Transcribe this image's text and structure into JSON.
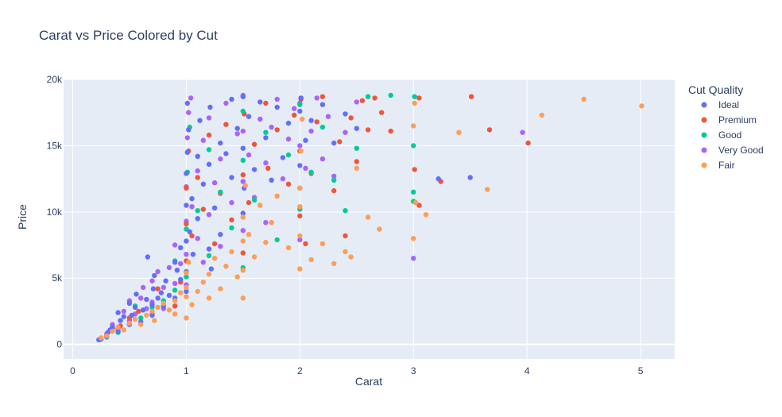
{
  "chart_data": {
    "type": "scatter",
    "title": "Carat vs Price Colored by Cut",
    "xlabel": "Carat",
    "ylabel": "Price",
    "xlim": [
      -0.08,
      5.3
    ],
    "ylim": [
      -1100,
      20000
    ],
    "x_ticks": [
      0,
      1,
      2,
      3,
      4,
      5
    ],
    "x_tick_labels": [
      "0",
      "1",
      "2",
      "3",
      "4",
      "5"
    ],
    "y_ticks": [
      0,
      5000,
      10000,
      15000,
      20000
    ],
    "y_tick_labels": [
      "0",
      "5k",
      "10k",
      "15k",
      "20k"
    ],
    "grid": true,
    "legend_title": "Cut Quality",
    "legend_position": "top-right",
    "series": [
      {
        "name": "Ideal",
        "color": "#636efa",
        "points": [
          [
            0.23,
            350
          ],
          [
            0.25,
            420
          ],
          [
            0.3,
            600
          ],
          [
            0.31,
            900
          ],
          [
            0.33,
            1100
          ],
          [
            0.35,
            1300
          ],
          [
            0.4,
            1000
          ],
          [
            0.4,
            2400
          ],
          [
            0.42,
            1800
          ],
          [
            0.45,
            2100
          ],
          [
            0.5,
            1500
          ],
          [
            0.5,
            3100
          ],
          [
            0.52,
            2200
          ],
          [
            0.55,
            2800
          ],
          [
            0.56,
            3800
          ],
          [
            0.6,
            1700
          ],
          [
            0.62,
            2600
          ],
          [
            0.65,
            3400
          ],
          [
            0.66,
            6600
          ],
          [
            0.7,
            2200
          ],
          [
            0.7,
            3000
          ],
          [
            0.71,
            4200
          ],
          [
            0.72,
            5200
          ],
          [
            0.75,
            3500
          ],
          [
            0.78,
            3900
          ],
          [
            0.8,
            2900
          ],
          [
            0.82,
            4800
          ],
          [
            0.85,
            3700
          ],
          [
            0.9,
            3500
          ],
          [
            0.9,
            6200
          ],
          [
            0.92,
            5600
          ],
          [
            0.95,
            4900
          ],
          [
            0.95,
            7300
          ],
          [
            1.0,
            4000
          ],
          [
            1.0,
            5500
          ],
          [
            1.0,
            7800
          ],
          [
            1.0,
            10500
          ],
          [
            1.0,
            12900
          ],
          [
            1.01,
            14500
          ],
          [
            1.02,
            16200
          ],
          [
            1.01,
            18200
          ],
          [
            1.03,
            8500
          ],
          [
            1.05,
            11000
          ],
          [
            1.06,
            6800
          ],
          [
            1.1,
            9500
          ],
          [
            1.1,
            14200
          ],
          [
            1.12,
            16900
          ],
          [
            1.15,
            12100
          ],
          [
            1.2,
            7200
          ],
          [
            1.2,
            13600
          ],
          [
            1.21,
            17900
          ],
          [
            1.22,
            5700
          ],
          [
            1.25,
            10300
          ],
          [
            1.3,
            15200
          ],
          [
            1.3,
            8300
          ],
          [
            1.35,
            14400
          ],
          [
            1.4,
            12600
          ],
          [
            1.4,
            18500
          ],
          [
            1.45,
            16300
          ],
          [
            1.5,
            9900
          ],
          [
            1.5,
            14800
          ],
          [
            1.5,
            18700
          ],
          [
            1.51,
            11800
          ],
          [
            1.55,
            17200
          ],
          [
            1.6,
            13200
          ],
          [
            1.65,
            18300
          ],
          [
            1.7,
            15600
          ],
          [
            1.75,
            12400
          ],
          [
            1.8,
            17900
          ],
          [
            1.85,
            14100
          ],
          [
            1.9,
            16700
          ],
          [
            2.0,
            13500
          ],
          [
            2.0,
            17600
          ],
          [
            2.01,
            18600
          ],
          [
            2.05,
            15400
          ],
          [
            2.1,
            16900
          ],
          [
            2.2,
            18100
          ],
          [
            2.3,
            15200
          ],
          [
            2.4,
            17400
          ],
          [
            2.5,
            16300
          ],
          [
            3.22,
            12500
          ],
          [
            3.5,
            12600
          ]
        ]
      },
      {
        "name": "Premium",
        "color": "#ef553b",
        "points": [
          [
            0.24,
            380
          ],
          [
            0.3,
            700
          ],
          [
            0.35,
            1200
          ],
          [
            0.42,
            1400
          ],
          [
            0.5,
            2000
          ],
          [
            0.58,
            2500
          ],
          [
            0.7,
            2300
          ],
          [
            0.75,
            4200
          ],
          [
            0.9,
            2900
          ],
          [
            0.95,
            4700
          ],
          [
            1.0,
            6300
          ],
          [
            1.0,
            9100
          ],
          [
            1.0,
            11800
          ],
          [
            1.02,
            14600
          ],
          [
            1.05,
            8200
          ],
          [
            1.1,
            12600
          ],
          [
            1.15,
            10200
          ],
          [
            1.2,
            15800
          ],
          [
            1.25,
            7600
          ],
          [
            1.3,
            11400
          ],
          [
            1.35,
            16600
          ],
          [
            1.4,
            9400
          ],
          [
            1.5,
            6900
          ],
          [
            1.5,
            12800
          ],
          [
            1.51,
            17400
          ],
          [
            1.55,
            10700
          ],
          [
            1.6,
            15100
          ],
          [
            1.7,
            18200
          ],
          [
            1.72,
            13300
          ],
          [
            1.8,
            16200
          ],
          [
            1.9,
            12100
          ],
          [
            1.95,
            17300
          ],
          [
            2.0,
            9700
          ],
          [
            2.0,
            14600
          ],
          [
            2.01,
            18500
          ],
          [
            2.05,
            7600
          ],
          [
            2.1,
            12900
          ],
          [
            2.15,
            16800
          ],
          [
            2.2,
            18700
          ],
          [
            2.3,
            11600
          ],
          [
            2.35,
            15300
          ],
          [
            2.4,
            8200
          ],
          [
            2.45,
            17100
          ],
          [
            2.5,
            13800
          ],
          [
            2.55,
            18400
          ],
          [
            2.6,
            16200
          ],
          [
            2.66,
            18600
          ],
          [
            2.72,
            17500
          ],
          [
            2.8,
            16100
          ],
          [
            3.01,
            13200
          ],
          [
            3.05,
            10500
          ],
          [
            3.05,
            18600
          ],
          [
            3.24,
            12300
          ],
          [
            3.51,
            18700
          ],
          [
            3.67,
            16200
          ],
          [
            4.01,
            15200
          ]
        ]
      },
      {
        "name": "Good",
        "color": "#00cc96",
        "points": [
          [
            0.3,
            550
          ],
          [
            0.4,
            900
          ],
          [
            0.5,
            1600
          ],
          [
            0.55,
            2900
          ],
          [
            0.6,
            2000
          ],
          [
            0.7,
            2800
          ],
          [
            0.8,
            3300
          ],
          [
            0.9,
            4100
          ],
          [
            0.9,
            6300
          ],
          [
            1.0,
            5100
          ],
          [
            1.0,
            8700
          ],
          [
            1.01,
            13000
          ],
          [
            1.03,
            16400
          ],
          [
            1.1,
            10100
          ],
          [
            1.2,
            6700
          ],
          [
            1.2,
            14700
          ],
          [
            1.3,
            11500
          ],
          [
            1.4,
            8800
          ],
          [
            1.5,
            5800
          ],
          [
            1.5,
            13900
          ],
          [
            1.5,
            17600
          ],
          [
            1.6,
            10900
          ],
          [
            1.7,
            16000
          ],
          [
            1.8,
            7900
          ],
          [
            1.9,
            14300
          ],
          [
            2.0,
            10200
          ],
          [
            2.0,
            18100
          ],
          [
            2.1,
            13000
          ],
          [
            2.2,
            16400
          ],
          [
            2.3,
            12400
          ],
          [
            2.4,
            10100
          ],
          [
            2.5,
            14800
          ],
          [
            2.6,
            18700
          ],
          [
            2.8,
            18800
          ],
          [
            3.0,
            15000
          ],
          [
            3.0,
            11500
          ],
          [
            3.0,
            10800
          ],
          [
            3.01,
            18700
          ]
        ]
      },
      {
        "name": "Very Good",
        "color": "#ab63fa",
        "points": [
          [
            0.25,
            400
          ],
          [
            0.3,
            800
          ],
          [
            0.35,
            1500
          ],
          [
            0.4,
            1200
          ],
          [
            0.45,
            2500
          ],
          [
            0.5,
            1800
          ],
          [
            0.5,
            3300
          ],
          [
            0.55,
            2300
          ],
          [
            0.6,
            3500
          ],
          [
            0.62,
            4300
          ],
          [
            0.65,
            2700
          ],
          [
            0.7,
            3200
          ],
          [
            0.7,
            4800
          ],
          [
            0.75,
            5500
          ],
          [
            0.8,
            2700
          ],
          [
            0.8,
            4300
          ],
          [
            0.85,
            5800
          ],
          [
            0.9,
            4600
          ],
          [
            0.9,
            7500
          ],
          [
            0.95,
            6100
          ],
          [
            1.0,
            4500
          ],
          [
            1.0,
            6800
          ],
          [
            1.0,
            9300
          ],
          [
            1.0,
            11900
          ],
          [
            1.01,
            15600
          ],
          [
            1.02,
            17500
          ],
          [
            1.04,
            18600
          ],
          [
            1.05,
            10400
          ],
          [
            1.1,
            8000
          ],
          [
            1.1,
            13100
          ],
          [
            1.15,
            6200
          ],
          [
            1.15,
            15400
          ],
          [
            1.2,
            9800
          ],
          [
            1.2,
            17100
          ],
          [
            1.25,
            12200
          ],
          [
            1.3,
            7400
          ],
          [
            1.3,
            14000
          ],
          [
            1.35,
            18200
          ],
          [
            1.4,
            10700
          ],
          [
            1.45,
            15900
          ],
          [
            1.5,
            8600
          ],
          [
            1.5,
            12300
          ],
          [
            1.5,
            16100
          ],
          [
            1.5,
            18800
          ],
          [
            1.55,
            14300
          ],
          [
            1.6,
            11100
          ],
          [
            1.65,
            17000
          ],
          [
            1.7,
            9200
          ],
          [
            1.7,
            13700
          ],
          [
            1.75,
            16400
          ],
          [
            1.8,
            18500
          ],
          [
            1.85,
            12500
          ],
          [
            1.9,
            15500
          ],
          [
            1.95,
            17800
          ],
          [
            2.0,
            7900
          ],
          [
            2.0,
            11800
          ],
          [
            2.0,
            15000
          ],
          [
            2.0,
            18200
          ],
          [
            2.05,
            13300
          ],
          [
            2.1,
            16100
          ],
          [
            2.15,
            18600
          ],
          [
            2.2,
            14000
          ],
          [
            2.25,
            17200
          ],
          [
            2.3,
            12700
          ],
          [
            2.4,
            16000
          ],
          [
            2.5,
            18300
          ],
          [
            3.0,
            6500
          ],
          [
            3.96,
            16000
          ]
        ]
      },
      {
        "name": "Fair",
        "color": "#fe9d56",
        "points": [
          [
            0.25,
            500
          ],
          [
            0.3,
            650
          ],
          [
            0.35,
            1000
          ],
          [
            0.4,
            1300
          ],
          [
            0.45,
            1100
          ],
          [
            0.5,
            1600
          ],
          [
            0.55,
            1900
          ],
          [
            0.6,
            1500
          ],
          [
            0.65,
            2200
          ],
          [
            0.7,
            2500
          ],
          [
            0.72,
            1800
          ],
          [
            0.75,
            2800
          ],
          [
            0.8,
            3100
          ],
          [
            0.85,
            2600
          ],
          [
            0.9,
            2300
          ],
          [
            0.9,
            3300
          ],
          [
            0.95,
            3900
          ],
          [
            1.0,
            2000
          ],
          [
            1.0,
            3600
          ],
          [
            1.0,
            4300
          ],
          [
            1.0,
            5400
          ],
          [
            1.02,
            6200
          ],
          [
            1.05,
            3000
          ],
          [
            1.1,
            4000
          ],
          [
            1.15,
            4700
          ],
          [
            1.2,
            3500
          ],
          [
            1.2,
            5300
          ],
          [
            1.25,
            6500
          ],
          [
            1.3,
            4200
          ],
          [
            1.35,
            5900
          ],
          [
            1.4,
            7000
          ],
          [
            1.45,
            5100
          ],
          [
            1.5,
            3500
          ],
          [
            1.5,
            5600
          ],
          [
            1.5,
            7800
          ],
          [
            1.5,
            9600
          ],
          [
            1.52,
            12000
          ],
          [
            1.55,
            8300
          ],
          [
            1.6,
            6600
          ],
          [
            1.65,
            10500
          ],
          [
            1.7,
            7700
          ],
          [
            1.75,
            9200
          ],
          [
            1.8,
            11200
          ],
          [
            1.9,
            7300
          ],
          [
            2.0,
            5700
          ],
          [
            2.0,
            8200
          ],
          [
            2.0,
            10400
          ],
          [
            2.0,
            11800
          ],
          [
            2.01,
            14600
          ],
          [
            2.02,
            17000
          ],
          [
            2.1,
            6400
          ],
          [
            2.2,
            7600
          ],
          [
            2.3,
            6100
          ],
          [
            2.4,
            7000
          ],
          [
            2.45,
            6600
          ],
          [
            2.5,
            13300
          ],
          [
            2.6,
            9600
          ],
          [
            2.7,
            8700
          ],
          [
            3.0,
            8000
          ],
          [
            3.0,
            16500
          ],
          [
            3.01,
            18200
          ],
          [
            3.02,
            10700
          ],
          [
            3.11,
            9800
          ],
          [
            3.4,
            16000
          ],
          [
            3.65,
            11700
          ],
          [
            4.13,
            17300
          ],
          [
            4.5,
            18500
          ],
          [
            5.01,
            18000
          ]
        ]
      }
    ]
  }
}
